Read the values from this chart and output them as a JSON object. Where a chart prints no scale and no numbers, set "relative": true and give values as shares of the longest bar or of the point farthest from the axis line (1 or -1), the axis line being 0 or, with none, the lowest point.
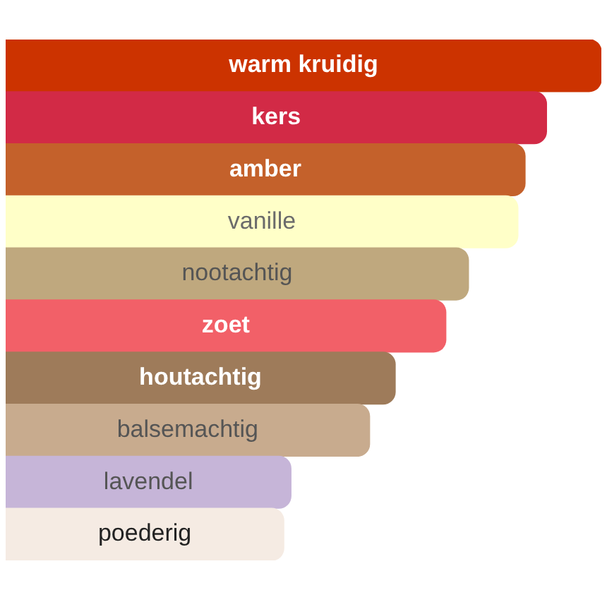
{
  "chart_data": {
    "type": "bar",
    "orientation": "horizontal",
    "relative": true,
    "categories": [
      "warm kruidig",
      "kers",
      "amber",
      "vanille",
      "nootachtig",
      "zoet",
      "houtachtig",
      "balsemachtig",
      "lavendel",
      "poederig"
    ],
    "values": [
      1,
      0.908,
      0.872,
      0.86,
      0.777,
      0.739,
      0.654,
      0.611,
      0.479,
      0.467
    ],
    "colors": [
      "#cc3300",
      "#d22a46",
      "#c4612b",
      "#ffffc8",
      "#bfa87e",
      "#f26068",
      "#9e7b5a",
      "#c8ab8e",
      "#c6b5d8",
      "#f5ebe3"
    ]
  }
}
